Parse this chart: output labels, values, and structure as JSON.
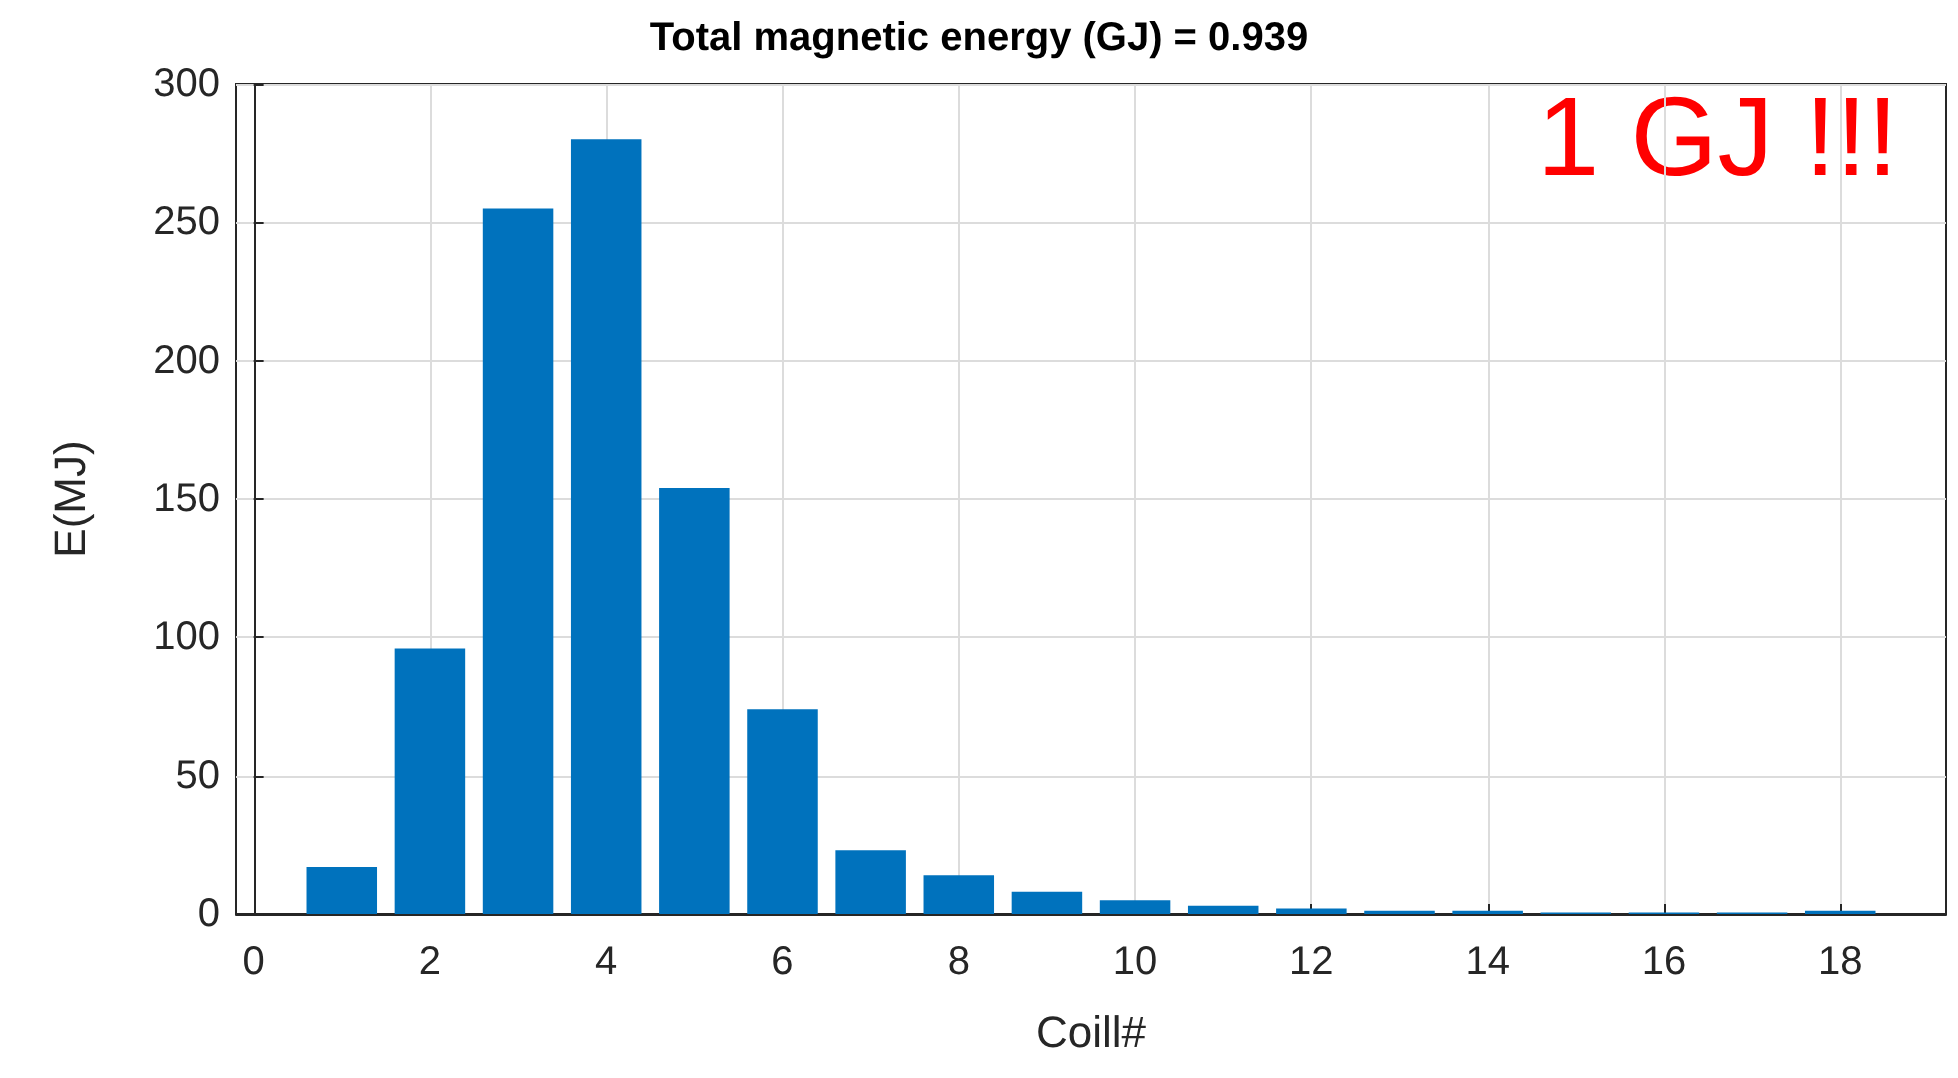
{
  "chart_data": {
    "type": "bar",
    "title": "Total magnetic energy (GJ) = 0.939",
    "xlabel": "Coill#",
    "ylabel": "E(MJ)",
    "x": [
      1,
      2,
      3,
      4,
      5,
      6,
      7,
      8,
      9,
      10,
      11,
      12,
      13,
      14,
      15,
      16,
      17,
      18
    ],
    "values": [
      17,
      96,
      255,
      280,
      154,
      74,
      23,
      14,
      8,
      5,
      3,
      2,
      1.2,
      1.2,
      0.5,
      0.5,
      0.5,
      1.2
    ],
    "color": "#0072bd",
    "xlim": [
      -0.2,
      19.2
    ],
    "xticks": [
      0,
      2,
      4,
      6,
      8,
      10,
      12,
      14,
      16,
      18
    ],
    "ylim": [
      0,
      300
    ],
    "yticks": [
      0,
      50,
      100,
      150,
      200,
      250,
      300
    ],
    "grid": true,
    "annotations": [
      "1 GJ !!!"
    ]
  }
}
